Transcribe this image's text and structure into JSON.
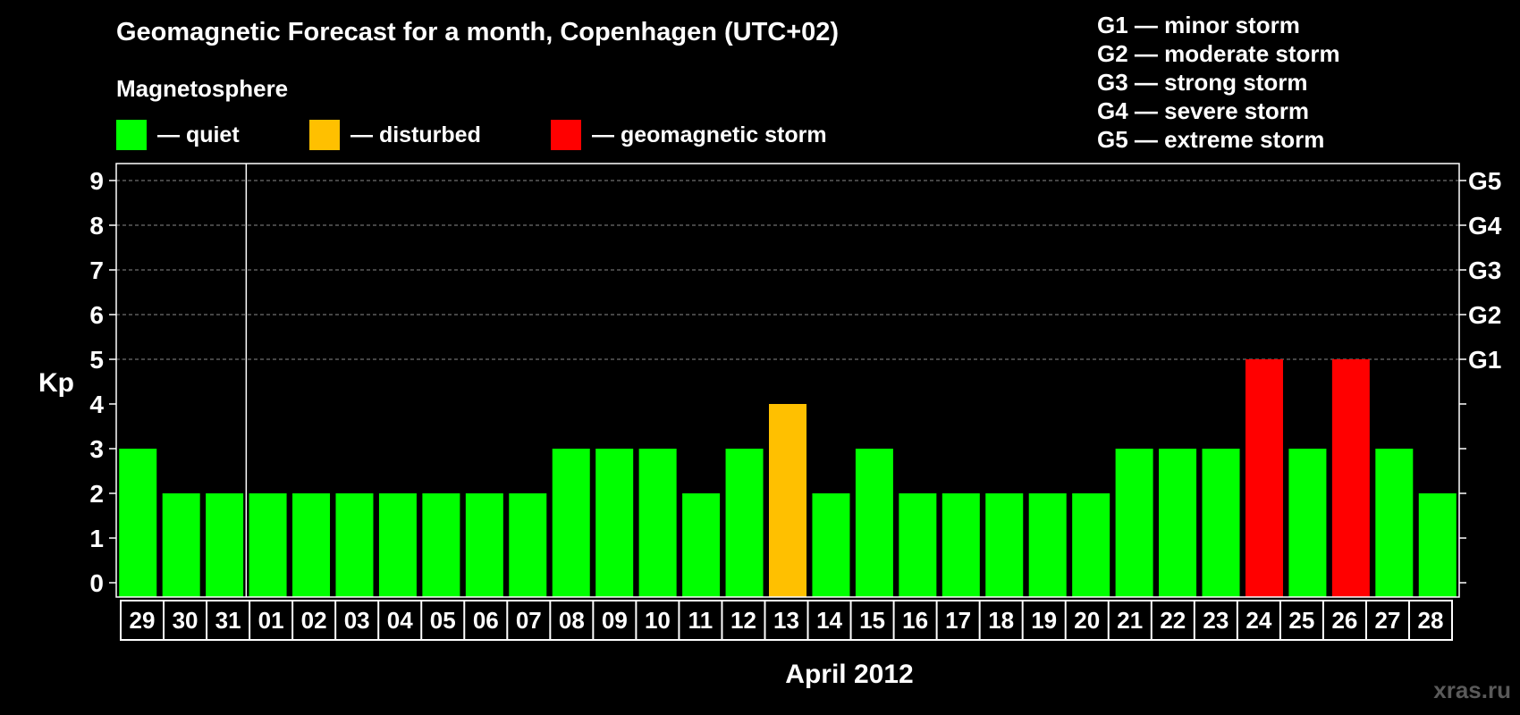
{
  "header": {
    "title": "Geomagnetic Forecast for a month, Copenhagen (UTC+02)",
    "subtitle": "Magnetosphere",
    "watermark": "xras.ru"
  },
  "legend": [
    {
      "label": "— quiet",
      "color": "#00ff00"
    },
    {
      "label": "— disturbed",
      "color": "#ffc000"
    },
    {
      "label": "— geomagnetic storm",
      "color": "#ff0000"
    }
  ],
  "g_legend": [
    "G1 — minor storm",
    "G2 — moderate storm",
    "G3 — strong storm",
    "G4 — severe storm",
    "G5 — extreme storm"
  ],
  "chart_data": {
    "type": "bar",
    "title": "Geomagnetic Forecast for a month, Copenhagen (UTC+02)",
    "ylabel": "Kp",
    "xlabel": "April 2012",
    "ylim": [
      0,
      9
    ],
    "yticks": [
      0,
      1,
      2,
      3,
      4,
      5,
      6,
      7,
      8,
      9
    ],
    "right_ticks": [
      {
        "value": 5,
        "label": "G1"
      },
      {
        "value": 6,
        "label": "G2"
      },
      {
        "value": 7,
        "label": "G3"
      },
      {
        "value": 8,
        "label": "G4"
      },
      {
        "value": 9,
        "label": "G5"
      }
    ],
    "grid": "dashed horizontal at 5-9",
    "month_separator_after": "31",
    "categories": [
      "29",
      "30",
      "31",
      "01",
      "02",
      "03",
      "04",
      "05",
      "06",
      "07",
      "08",
      "09",
      "10",
      "11",
      "12",
      "13",
      "14",
      "15",
      "16",
      "17",
      "18",
      "19",
      "20",
      "21",
      "22",
      "23",
      "24",
      "25",
      "26",
      "27",
      "28"
    ],
    "values": [
      3,
      2,
      2,
      2,
      2,
      2,
      2,
      2,
      2,
      2,
      3,
      3,
      3,
      2,
      3,
      4,
      2,
      3,
      2,
      2,
      2,
      2,
      2,
      3,
      3,
      3,
      5,
      3,
      5,
      3,
      2
    ],
    "colors": {
      "quiet": "#00ff00",
      "disturbed": "#ffc000",
      "storm": "#ff0000"
    }
  }
}
